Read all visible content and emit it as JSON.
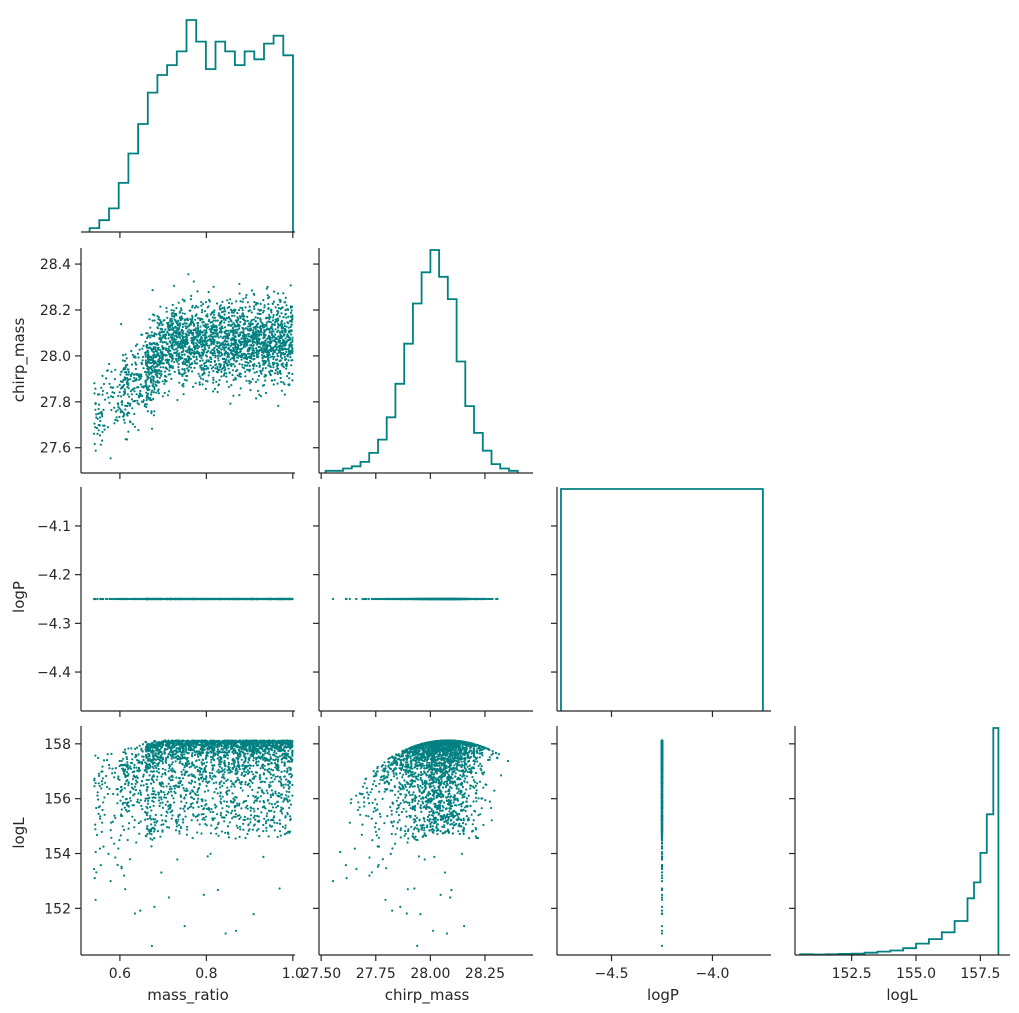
{
  "chart_data": {
    "type": "corner",
    "color": "#008080",
    "variables": [
      "mass_ratio",
      "chirp_mass",
      "logP",
      "logL"
    ],
    "ranges": {
      "mass_ratio": [
        0.51,
        1.005
      ],
      "chirp_mass": [
        27.49,
        28.47
      ],
      "logP": [
        -4.77,
        -3.71
      ],
      "logL": [
        150.3,
        158.65
      ],
      "logP_y": [
        -4.48,
        -4.02
      ]
    },
    "ticks": {
      "mass_ratio": [
        {
          "v": 0.6,
          "label": "0.6"
        },
        {
          "v": 0.8,
          "label": "0.8"
        },
        {
          "v": 1.0,
          "label": "1.0"
        }
      ],
      "chirp_mass_x": [
        {
          "v": 27.5,
          "label": "27.50"
        },
        {
          "v": 27.75,
          "label": "27.75"
        },
        {
          "v": 28.0,
          "label": "28.00"
        },
        {
          "v": 28.25,
          "label": "28.25"
        }
      ],
      "chirp_mass_y": [
        {
          "v": 27.6,
          "label": "27.6"
        },
        {
          "v": 27.8,
          "label": "27.8"
        },
        {
          "v": 28.0,
          "label": "28.0"
        },
        {
          "v": 28.2,
          "label": "28.2"
        },
        {
          "v": 28.4,
          "label": "28.4"
        }
      ],
      "logP_x": [
        {
          "v": -4.5,
          "label": "−4.5"
        },
        {
          "v": -4.0,
          "label": "−4.0"
        }
      ],
      "logP_y": [
        {
          "v": -4.4,
          "label": "−4.4"
        },
        {
          "v": -4.3,
          "label": "−4.3"
        },
        {
          "v": -4.2,
          "label": "−4.2"
        },
        {
          "v": -4.1,
          "label": "−4.1"
        }
      ],
      "logL_x": [
        {
          "v": 152.5,
          "label": "152.5"
        },
        {
          "v": 155.0,
          "label": "155.0"
        },
        {
          "v": 157.5,
          "label": "157.5"
        }
      ],
      "logL_y": [
        {
          "v": 152,
          "label": "152"
        },
        {
          "v": 154,
          "label": "154"
        },
        {
          "v": 156,
          "label": "156"
        },
        {
          "v": 158,
          "label": "158"
        }
      ]
    },
    "logP_value": -4.25,
    "histograms": {
      "mass_ratio": {
        "edges": [
          0.53,
          0.5524,
          0.5748,
          0.5972,
          0.6196,
          0.642,
          0.6644,
          0.6868,
          0.7092,
          0.7316,
          0.754,
          0.7764,
          0.7988,
          0.8212,
          0.8436,
          0.866,
          0.8884,
          0.9108,
          0.9332,
          0.9556,
          0.978,
          1.0004
        ],
        "counts": [
          2,
          6,
          12,
          25,
          40,
          55,
          71,
          80,
          85,
          92,
          108,
          97,
          83,
          97,
          92,
          85,
          92,
          88,
          96,
          100,
          90
        ]
      },
      "chirp_mass": {
        "edges": [
          27.52,
          27.56,
          27.6,
          27.64,
          27.68,
          27.72,
          27.76,
          27.8,
          27.84,
          27.88,
          27.92,
          27.96,
          28.0,
          28.04,
          28.08,
          28.12,
          28.16,
          28.2,
          28.24,
          28.28,
          28.32,
          28.36,
          28.4
        ],
        "counts": [
          1,
          1,
          2,
          3,
          5,
          9,
          15,
          25,
          40,
          58,
          76,
          90,
          100,
          88,
          78,
          50,
          30,
          18,
          10,
          4,
          2,
          1
        ]
      },
      "logP": {
        "edges": [
          -4.75,
          -3.75
        ],
        "counts": [
          1
        ]
      },
      "logL": {
        "edges": [
          150.5,
          151.0,
          151.5,
          152.0,
          152.5,
          153.0,
          153.5,
          154.0,
          154.5,
          155.0,
          155.5,
          156.0,
          156.5,
          157.0,
          157.25,
          157.5,
          157.75,
          158.0,
          158.2
        ],
        "counts": [
          0.3,
          0.2,
          0.3,
          0.5,
          0.6,
          1,
          1.5,
          2,
          3,
          5,
          7,
          10,
          15,
          25,
          32,
          45,
          62,
          100
        ]
      }
    },
    "scatter_shapes": {
      "chirp_vs_ratio": "cloud centered near 28.05, rising from ~27.7 at mass_ratio 0.55 to a plateau for mass_ratio > 0.7",
      "logL_vs_ratio": "upper envelope at ~158.1 for mass_ratio > 0.7, sparse tail down to ~150.5",
      "logL_vs_chirp": "arch peaking at ~158.1 near chirp_mass 28.08",
      "logL_vs_logP": "vertical line at logP -4.25"
    },
    "xlabels": [
      "mass_ratio",
      "chirp_mass",
      "logP",
      "logL"
    ],
    "ylabels": [
      "chirp_mass",
      "logP",
      "logL"
    ],
    "grid": false,
    "legend": "none"
  }
}
